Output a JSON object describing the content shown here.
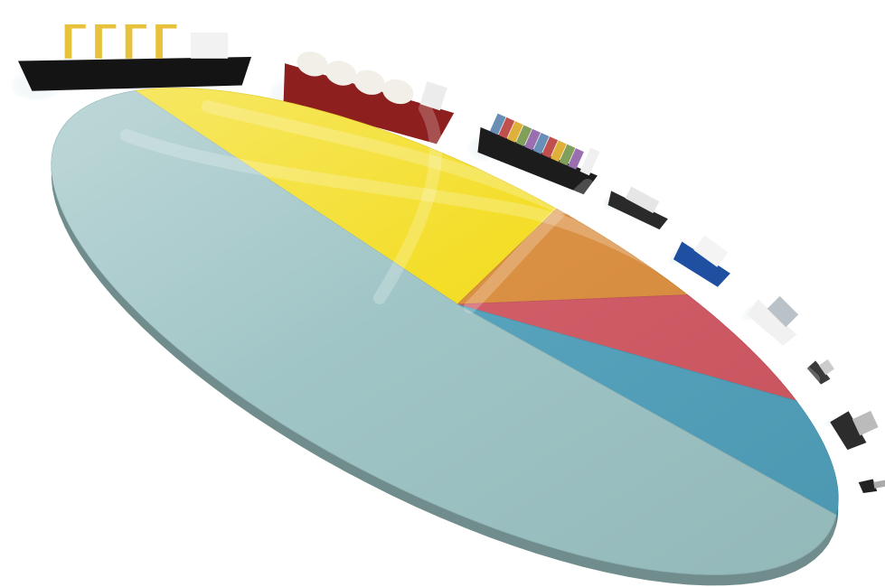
{
  "chart_data": {
    "type": "pie",
    "style": "3d-tilted-disc",
    "title": "",
    "legend": "none",
    "data_labels": "none",
    "slices": [
      {
        "color": "#f3dc1c",
        "share": 0.19
      },
      {
        "color": "#d98b3a",
        "share": 0.06
      },
      {
        "color": "#cf5560",
        "share": 0.07
      },
      {
        "color": "#4f9fba",
        "share": 0.09
      },
      {
        "color": "#9bc2c3",
        "share": 0.59
      }
    ]
  },
  "decorations": {
    "ships": [
      {
        "type": "bulk-carrier",
        "hull_color": "#141414",
        "accent_color": "#e8c23a"
      },
      {
        "type": "lng-carrier",
        "hull_color": "#8e1f1f",
        "accent_color": "#f1efe8"
      },
      {
        "type": "container-ship",
        "hull_color": "#1c1c1c",
        "accent_color": "#6a8fb6"
      },
      {
        "type": "offshore-vessel",
        "hull_color": "#2a2a2a",
        "accent_color": "#e6e6e6"
      },
      {
        "type": "ro-ro-ferry",
        "hull_color": "#1f4fa0",
        "accent_color": "#f4f4f4"
      },
      {
        "type": "cruise-ship",
        "hull_color": "#f1f1f1",
        "accent_color": "#b8c2c8"
      },
      {
        "type": "small-vessel",
        "hull_color": "#3a3a3a",
        "accent_color": "#cccccc"
      },
      {
        "type": "small-vessel",
        "hull_color": "#2c2c2c",
        "accent_color": "#bbbbbb"
      },
      {
        "type": "small-vessel",
        "hull_color": "#222222",
        "accent_color": "#aaaaaa"
      }
    ]
  }
}
